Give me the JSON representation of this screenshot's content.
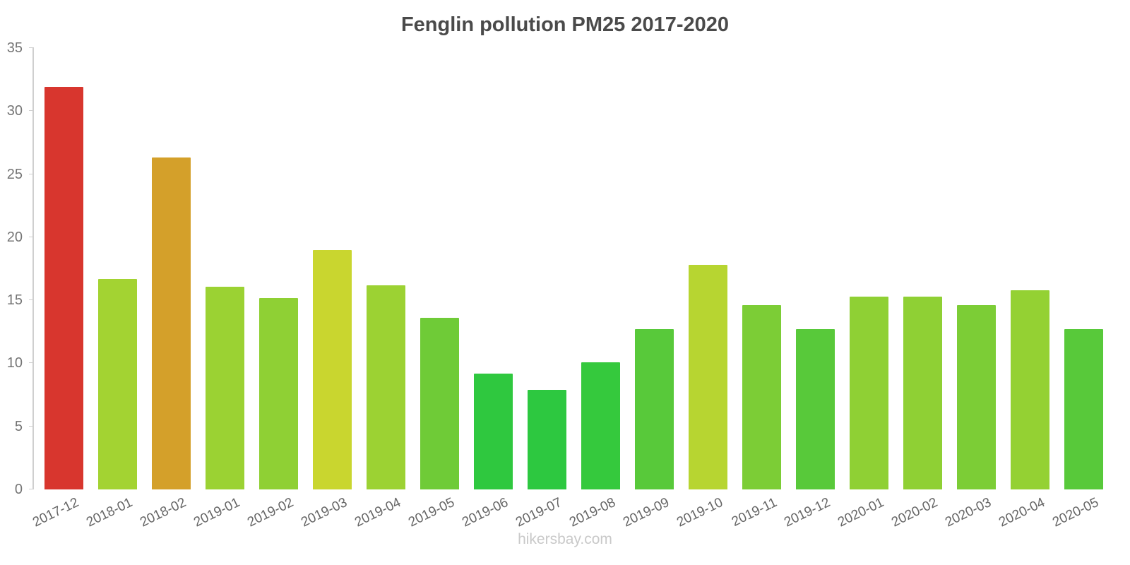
{
  "footer": "hikersbay.com",
  "chart_data": {
    "type": "bar",
    "title": "Fenglin pollution PM25 2017-2020",
    "xlabel": "",
    "ylabel": "",
    "ylim": [
      0,
      35
    ],
    "yticks": [
      0,
      5,
      10,
      15,
      20,
      25,
      30,
      35
    ],
    "grid": false,
    "legend": false,
    "categories": [
      "2017-12",
      "2018-01",
      "2018-02",
      "2019-01",
      "2019-02",
      "2019-03",
      "2019-04",
      "2019-05",
      "2019-06",
      "2019-07",
      "2019-08",
      "2019-09",
      "2019-10",
      "2019-11",
      "2019-12",
      "2020-01",
      "2020-02",
      "2020-03",
      "2020-04",
      "2020-05"
    ],
    "values": [
      31.9,
      16.7,
      26.3,
      16.1,
      15.2,
      19.0,
      16.2,
      13.6,
      9.2,
      7.9,
      10.1,
      12.7,
      17.8,
      14.6,
      12.7,
      15.3,
      15.3,
      14.6,
      15.8,
      12.7
    ],
    "bar_colors": [
      "#d8362e",
      "#a3d332",
      "#d4a02a",
      "#9bd233",
      "#8fd034",
      "#c9d62f",
      "#9cd233",
      "#6fcb37",
      "#2fc83f",
      "#2dc840",
      "#35c93d",
      "#58c93a",
      "#b7d531",
      "#7ccd36",
      "#58c93a",
      "#8fd034",
      "#8fd034",
      "#7ccd36",
      "#94d133",
      "#58c93a"
    ],
    "axis_color": "#cfcfcf",
    "tick_label_color": "#757575",
    "title_color": "#4a4a4a"
  }
}
